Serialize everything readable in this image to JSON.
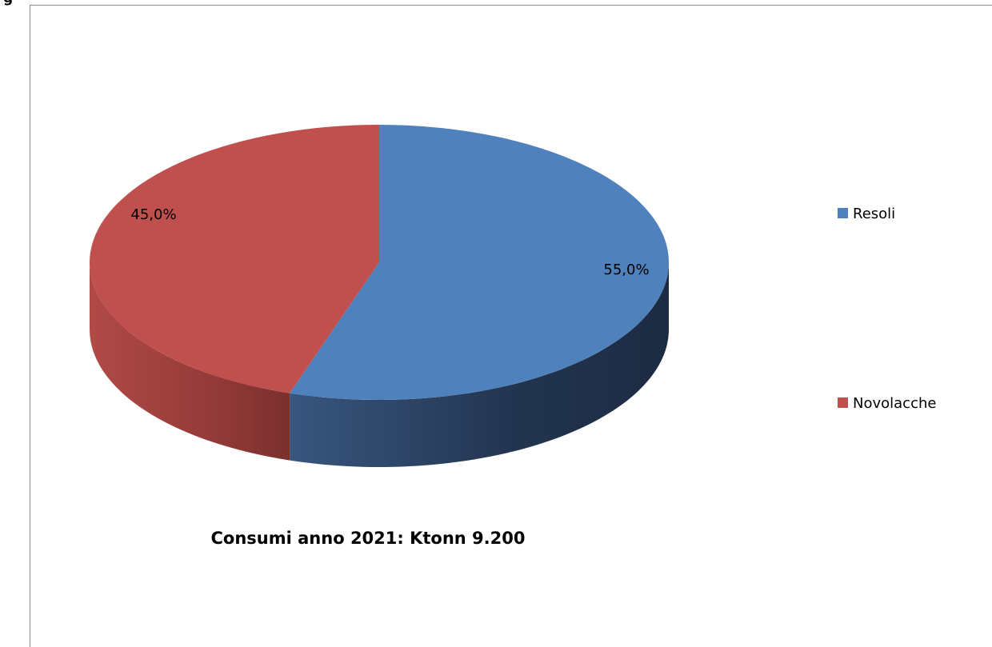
{
  "chart_data": {
    "type": "pie",
    "slices": [
      {
        "name": "Resoli",
        "value": 55.0,
        "label": "55,0%",
        "color": "#4f81bd"
      },
      {
        "name": "Novolacche",
        "value": 45.0,
        "label": "45,0%",
        "color": "#c0504d"
      }
    ],
    "legend_placement": "right",
    "caption": "Consumi anno 2021: Ktonn 9.200",
    "three_d": true
  }
}
